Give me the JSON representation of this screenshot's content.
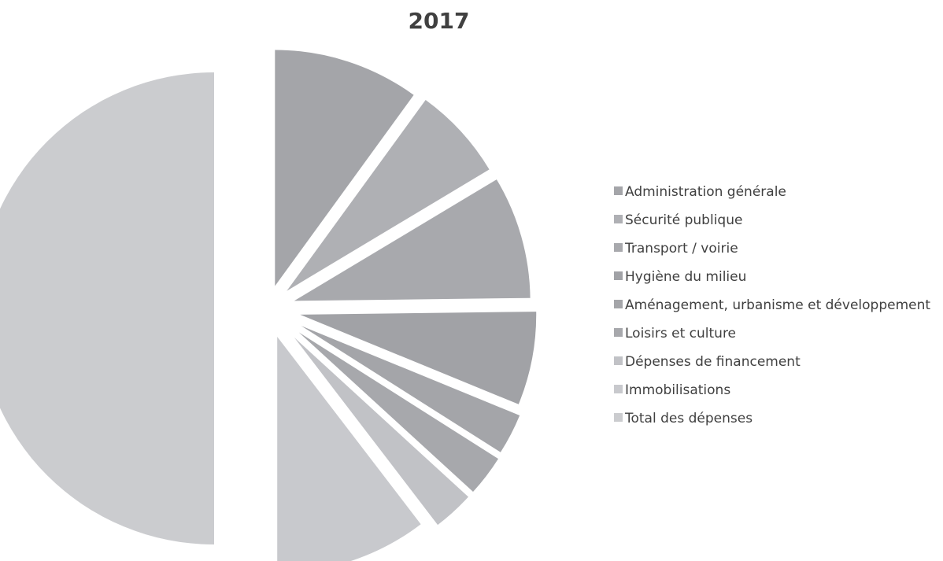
{
  "chart_data": {
    "type": "pie",
    "title": "2017",
    "categories": [
      "Administration générale",
      "Sécurité publique",
      "Transport / voirie",
      "Hygiène du milieu",
      "Aménagement, urbanisme et développement",
      "Loisirs et culture",
      "Dépenses de financement",
      "Immobilisations",
      "Total des dépenses"
    ],
    "values": [
      5.0,
      3.2,
      4.2,
      3.2,
      1.4,
      1.4,
      1.4,
      5.2,
      25.0
    ],
    "colors": [
      "#a4a5a9",
      "#afb0b4",
      "#a8a9ad",
      "#a1a2a6",
      "#a4a5a9",
      "#a7a8ac",
      "#c1c2c6",
      "#c8c9cd",
      "#cbcccf"
    ],
    "legend_position": "right",
    "grid": false
  }
}
